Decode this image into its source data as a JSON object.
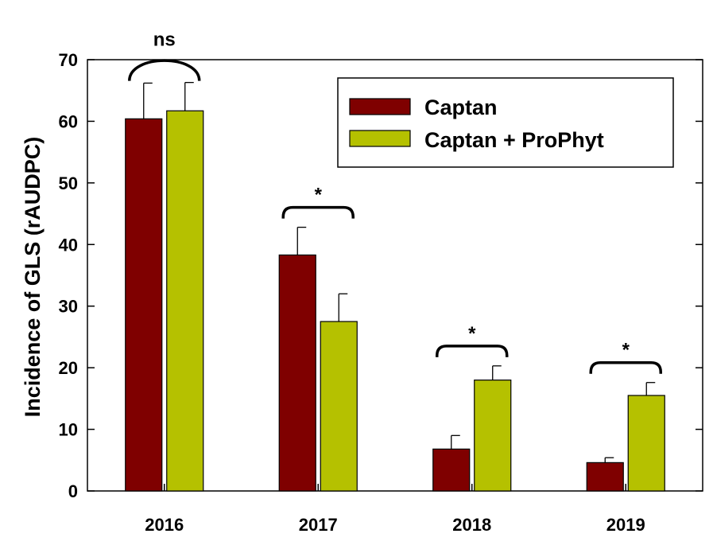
{
  "chart_data": {
    "type": "bar",
    "categories": [
      "2016",
      "2017",
      "2018",
      "2019"
    ],
    "series": [
      {
        "name": "Captan",
        "color": "#7f0000",
        "values": [
          60.4,
          38.3,
          6.8,
          4.6
        ],
        "error": [
          5.8,
          4.5,
          2.2,
          0.8
        ]
      },
      {
        "name": "Captan + ProPhyt",
        "color": "#b5c100",
        "values": [
          61.7,
          27.5,
          18.0,
          15.5
        ],
        "error": [
          4.6,
          4.5,
          2.3,
          2.1
        ]
      }
    ],
    "ylabel": "Incidence of GLS (rAUDPC)",
    "xlabel": "",
    "ylim": [
      0,
      70
    ],
    "yticks": [
      0,
      10,
      20,
      30,
      40,
      50,
      60,
      70
    ],
    "legend_position": "top-right",
    "grid": false,
    "annotations": [
      "ns",
      "*",
      "*",
      "*"
    ]
  }
}
